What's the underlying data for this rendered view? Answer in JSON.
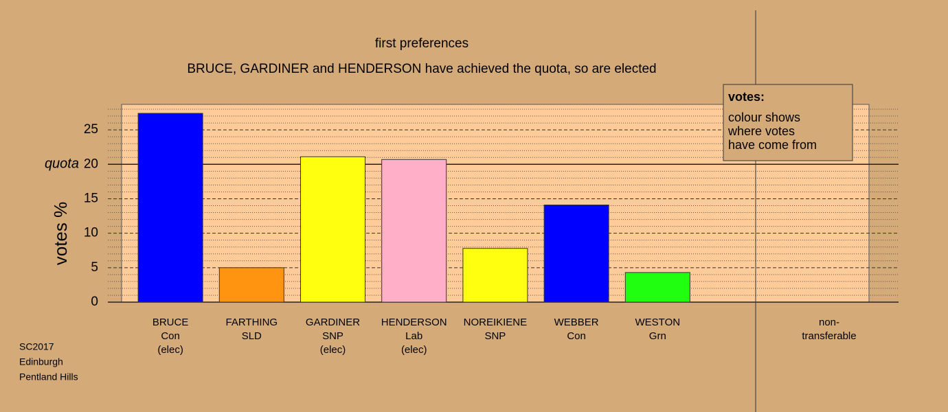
{
  "chart_data": {
    "type": "bar",
    "title": "first preferences",
    "subtitle": "BRUCE, GARDINER and HENDERSON have achieved the quota, so are elected",
    "ylabel": "votes %",
    "categories": [
      [
        "BRUCE",
        "Con",
        "(elec)"
      ],
      [
        "FARTHING",
        "SLD"
      ],
      [
        "GARDINER",
        "SNP",
        "(elec)"
      ],
      [
        "HENDERSON",
        "Lab",
        "(elec)"
      ],
      [
        "NOREIKIENE",
        "SNP"
      ],
      [
        "WEBBER",
        "Con"
      ],
      [
        "WESTON",
        "Grn"
      ],
      [
        "non-",
        "transferable"
      ]
    ],
    "values": [
      27.4,
      5.0,
      21.1,
      20.7,
      7.8,
      14.1,
      4.3,
      0
    ],
    "colors": [
      "#0000ff",
      "#ff9410",
      "#ffff10",
      "#ffb0c8",
      "#ffff10",
      "#0000ff",
      "#20ff10",
      "#888888"
    ],
    "ylim": [
      0,
      28.7
    ],
    "yticks": [
      0,
      5,
      10,
      15,
      20,
      25
    ],
    "yminorticks": [
      1,
      2,
      3,
      4,
      6,
      7,
      8,
      9,
      11,
      12,
      13,
      14,
      16,
      17,
      18,
      19,
      21,
      22,
      23,
      24,
      26,
      27,
      28
    ],
    "quota": {
      "label": "quota",
      "value": 20
    },
    "legend": {
      "title": "votes:",
      "lines": [
        "colour shows",
        "where votes",
        "have come from"
      ]
    },
    "footer": [
      "SC2017",
      "Edinburgh",
      "Pentland Hills"
    ]
  }
}
